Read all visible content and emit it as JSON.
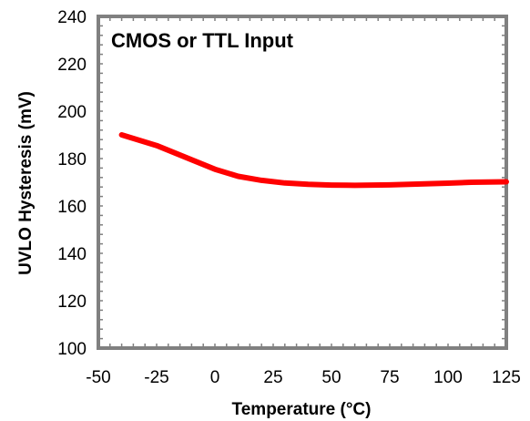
{
  "chart_data": {
    "type": "line",
    "title": "",
    "annotation": "CMOS or TTL Input",
    "xlabel": "Temperature (°C)",
    "ylabel": "UVLO Hysteresis (mV)",
    "xlim": [
      -50,
      125
    ],
    "ylim": [
      100,
      240
    ],
    "xticks": [
      -50,
      -25,
      0,
      25,
      50,
      75,
      100,
      125
    ],
    "yticks": [
      100,
      120,
      140,
      160,
      180,
      200,
      220,
      240
    ],
    "grid": false,
    "frame_color": "#808080",
    "series": [
      {
        "color": "#ff0000",
        "x": [
          -40,
          -25,
          -10,
          0,
          10,
          20,
          30,
          40,
          50,
          60,
          75,
          90,
          100,
          110,
          125
        ],
        "y": [
          190,
          185.5,
          179.5,
          175.5,
          172.5,
          170.8,
          169.7,
          169.1,
          168.8,
          168.7,
          168.9,
          169.3,
          169.6,
          170,
          170.2
        ]
      }
    ]
  }
}
